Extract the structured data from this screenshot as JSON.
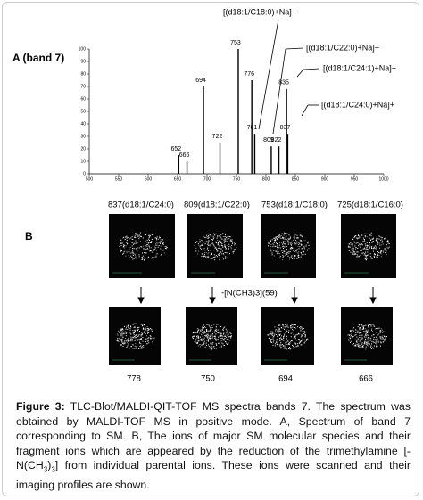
{
  "chart_data": {
    "type": "bar",
    "title": "A (band 7)",
    "x": [
      652,
      666,
      694,
      722,
      753,
      776,
      781,
      809,
      822,
      835,
      837
    ],
    "values": [
      15,
      10,
      70,
      25,
      100,
      75,
      32,
      22,
      22,
      68,
      32
    ],
    "color": "#000000",
    "xlim": [
      500,
      1000
    ],
    "xticks": [
      500,
      550,
      600,
      650,
      700,
      750,
      800,
      850,
      900,
      950,
      1000
    ],
    "ylim": [
      0,
      100
    ],
    "yticks": [
      0,
      10,
      20,
      30,
      40,
      50,
      60,
      70,
      80,
      90,
      100
    ],
    "annotations": [
      "[(d18:1/C18:0)+Na]+",
      "[(d18:1/C22:0)+Na]+",
      "[(d18:1/C24:1)+Na]+",
      "[(d18:1/C24:0)+Na]+"
    ]
  },
  "panel_b": {
    "label": "B",
    "top_labels": [
      "837(d18:1/C24:0)",
      "809(d18:1/C22:0)",
      "753(d18:1/C18:0)",
      "725(d18:1/C16:0)"
    ],
    "loss_label": "-[N(CH3)3](59)",
    "bottom_labels": [
      "778",
      "750",
      "694",
      "666"
    ]
  },
  "caption": {
    "segments": [
      "Figure 3:",
      " TLC-Blot/MALDI-QIT-TOF MS spectra bands 7. The spectrum was obtained  by MALDI-TOF MS in positive mode. A, Spectrum of band 7 corresponding to SM. B, The ions of major SM molecular species and their fragment ions which are appeared by the reduction of the trimethylamine [-N(CH",
      "3",
      ")",
      "3",
      "] from individual parental ions. These ions were scanned and their imaging profiles are shown."
    ]
  }
}
